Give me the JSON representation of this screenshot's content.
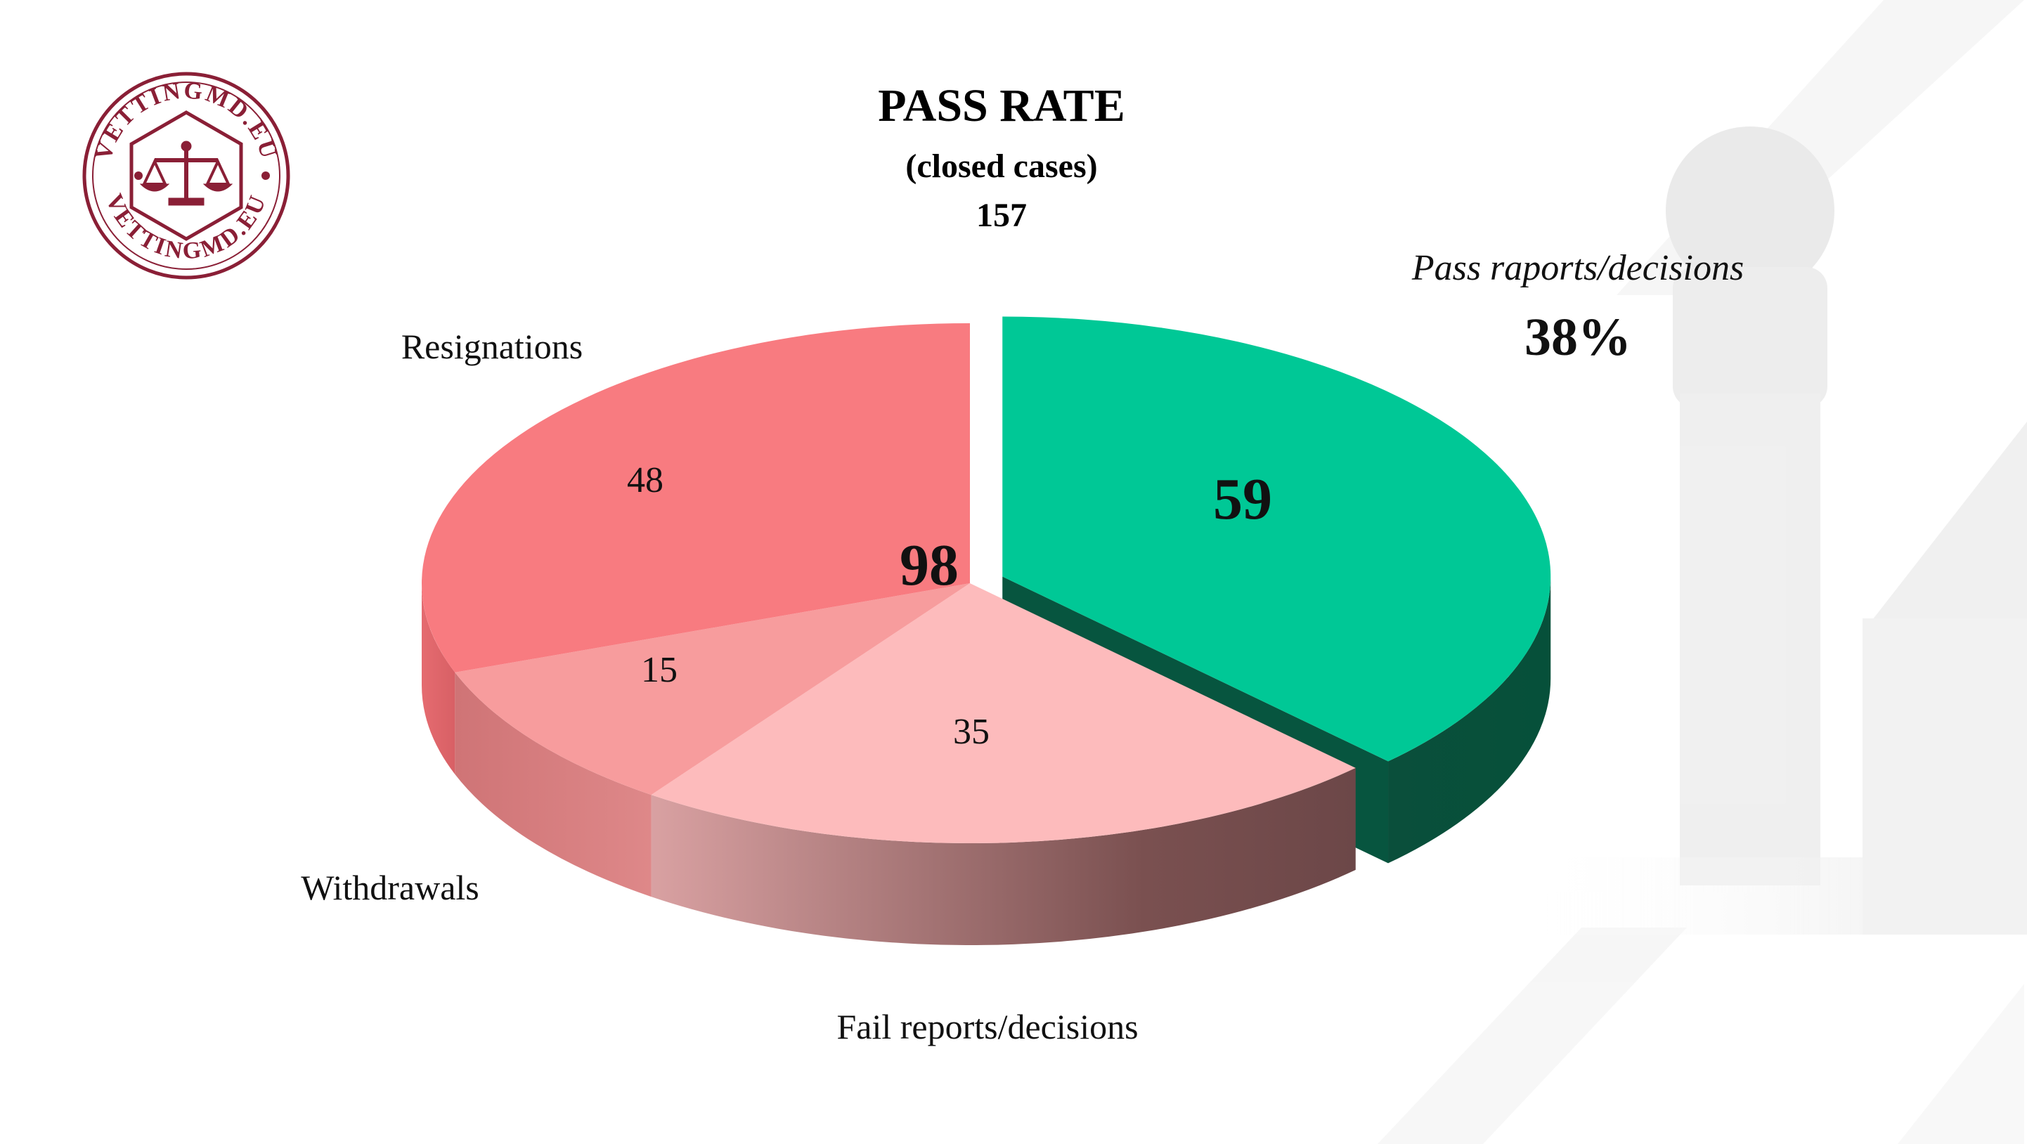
{
  "title": "PASS RATE",
  "subtitle": "(closed cases)",
  "total": "157",
  "logo_text": "VETTINGMD.EU",
  "fail_total": "98",
  "pass_pct": "38%",
  "colors": {
    "pass": "#00c896",
    "pass_side": "#07553f",
    "resignations": "#f87b80",
    "withdrawals": "#f79c9d",
    "fail": "#fdbbbc",
    "logo": "#8a1f36"
  },
  "chart_data": {
    "type": "pie",
    "title": "PASS RATE",
    "subtitle": "(closed cases)",
    "total": 157,
    "slices": [
      {
        "label": "Pass raports/decisions",
        "value": 59,
        "color": "#00c896",
        "exploded": true
      },
      {
        "label": "Fail reports/decisions",
        "value": 35,
        "color": "#fdbbbc"
      },
      {
        "label": "Withdrawals",
        "value": 15,
        "color": "#f79c9d"
      },
      {
        "label": "Resignations",
        "value": 48,
        "color": "#f87b80"
      }
    ],
    "annotations": {
      "fail_group_total": 98,
      "pass_percent": "38%"
    },
    "style": "3d"
  }
}
